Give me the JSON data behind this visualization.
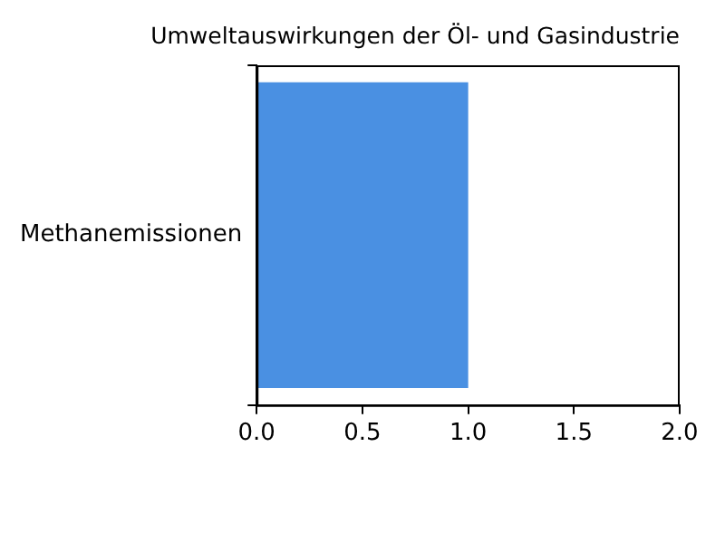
{
  "chart_data": {
    "type": "bar",
    "orientation": "horizontal",
    "title": "Umweltauswirkungen der Öl- und Gasindustrie",
    "categories": [
      "Methanemissionen"
    ],
    "series": [
      {
        "color": "#4a90e2",
        "values": [
          1.0
        ]
      }
    ],
    "xlim": [
      0,
      2
    ],
    "xticks": [
      {
        "value": 0,
        "label": "0.0"
      },
      0.5,
      {
        "value": 1,
        "label": "1.0"
      },
      1.5,
      {
        "value": 2,
        "label": "2.0"
      }
    ],
    "grid": false,
    "legend": false
  }
}
